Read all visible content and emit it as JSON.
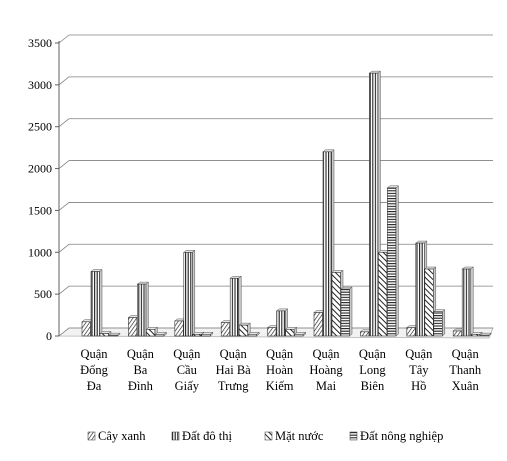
{
  "chart_data": {
    "type": "bar",
    "ylim": [
      0,
      3500
    ],
    "yticks": [
      "0",
      "500",
      "1000",
      "1500",
      "2000",
      "2500",
      "3000",
      "3500"
    ],
    "grid": true,
    "legend_position": "bottom",
    "categories": [
      [
        "Quận",
        "Đống",
        "Đa"
      ],
      [
        "Quận",
        "Ba",
        "Đình"
      ],
      [
        "Quận",
        "Cầu",
        "Giấy"
      ],
      [
        "Quận",
        "Hai Bà",
        "Trưng"
      ],
      [
        "Quận",
        "Hoàn",
        "Kiếm"
      ],
      [
        "Quận",
        "Hoàng",
        "Mai"
      ],
      [
        "Quận",
        "Long",
        "Biên"
      ],
      [
        "Quận",
        "Tây",
        "Hồ"
      ],
      [
        "Quận",
        "Thanh",
        "Xuân"
      ]
    ],
    "series": [
      {
        "name": "Cây xanh",
        "pattern": "diag-narrow",
        "values": [
          170,
          220,
          180,
          160,
          100,
          280,
          50,
          100,
          60
        ]
      },
      {
        "name": "Đất đô thị",
        "pattern": "vertical",
        "values": [
          770,
          620,
          1000,
          690,
          300,
          2200,
          3140,
          1110,
          800
        ]
      },
      {
        "name": "Mặt nước",
        "pattern": "diag-wide",
        "values": [
          30,
          80,
          20,
          130,
          80,
          760,
          1000,
          800,
          20
        ]
      },
      {
        "name": "Đất nông nghiệp",
        "pattern": "horizontal",
        "values": [
          10,
          20,
          20,
          20,
          20,
          560,
          1770,
          290,
          10
        ]
      }
    ]
  }
}
